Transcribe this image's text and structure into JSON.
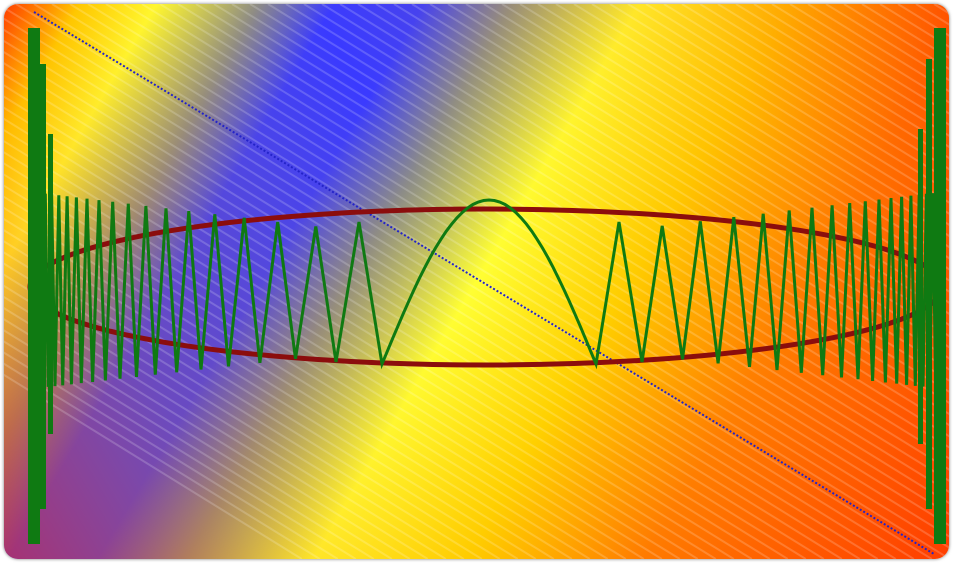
{
  "image": {
    "kind": "abstract-graphic",
    "background_palette": [
      "#ff2a00",
      "#ff7a00",
      "#ffd000",
      "#ffff33",
      "#8a8a8a",
      "#3a3aff"
    ],
    "diagonal_band_color": "#3a3aff",
    "ellipse_color": "#8b0d0d",
    "waveform_color": "#0f7a12"
  }
}
